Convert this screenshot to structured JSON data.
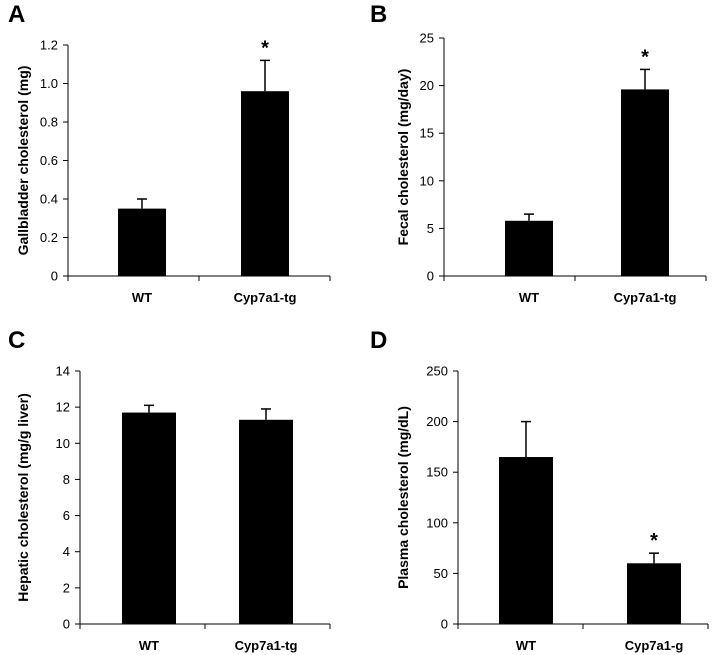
{
  "chart_data": [
    {
      "panel": "A",
      "type": "bar",
      "ylabel": "Gallbladder cholesterol (mg)",
      "categories": [
        "WT",
        "Cyp7a1-tg"
      ],
      "values": [
        0.35,
        0.96
      ],
      "errors": [
        0.05,
        0.16
      ],
      "significance": [
        "",
        "*"
      ],
      "ylim": [
        0,
        1.2
      ],
      "yticks": [
        "0",
        "0.2",
        "0.4",
        "0.6",
        "0.8",
        "1.0",
        "1.2"
      ],
      "bar_color": "#000000"
    },
    {
      "panel": "B",
      "type": "bar",
      "ylabel": "Fecal cholesterol (mg/day)",
      "categories": [
        "WT",
        "Cyp7a1-tg"
      ],
      "values": [
        5.8,
        19.6
      ],
      "errors": [
        0.7,
        2.1
      ],
      "significance": [
        "",
        "*"
      ],
      "ylim": [
        0,
        25
      ],
      "yticks": [
        "0",
        "5",
        "10",
        "15",
        "20",
        "25"
      ],
      "bar_color": "#000000"
    },
    {
      "panel": "C",
      "type": "bar",
      "ylabel": "Hepatic cholesterol (mg/g liver)",
      "categories": [
        "WT",
        "Cyp7a1-tg"
      ],
      "values": [
        11.7,
        11.3
      ],
      "errors": [
        0.4,
        0.6
      ],
      "significance": [
        "",
        ""
      ],
      "ylim": [
        0,
        14
      ],
      "yticks": [
        "0",
        "2",
        "4",
        "6",
        "8",
        "10",
        "12",
        "14"
      ],
      "bar_color": "#000000"
    },
    {
      "panel": "D",
      "type": "bar",
      "ylabel": "Plasma cholesterol (mg/dL)",
      "categories": [
        "WT",
        "Cyp7a1-g"
      ],
      "values": [
        165,
        60
      ],
      "errors": [
        35,
        10
      ],
      "significance": [
        "",
        "*"
      ],
      "ylim": [
        0,
        250
      ],
      "yticks": [
        "0",
        "50",
        "100",
        "150",
        "200",
        "250"
      ],
      "bar_color": "#000000"
    }
  ]
}
